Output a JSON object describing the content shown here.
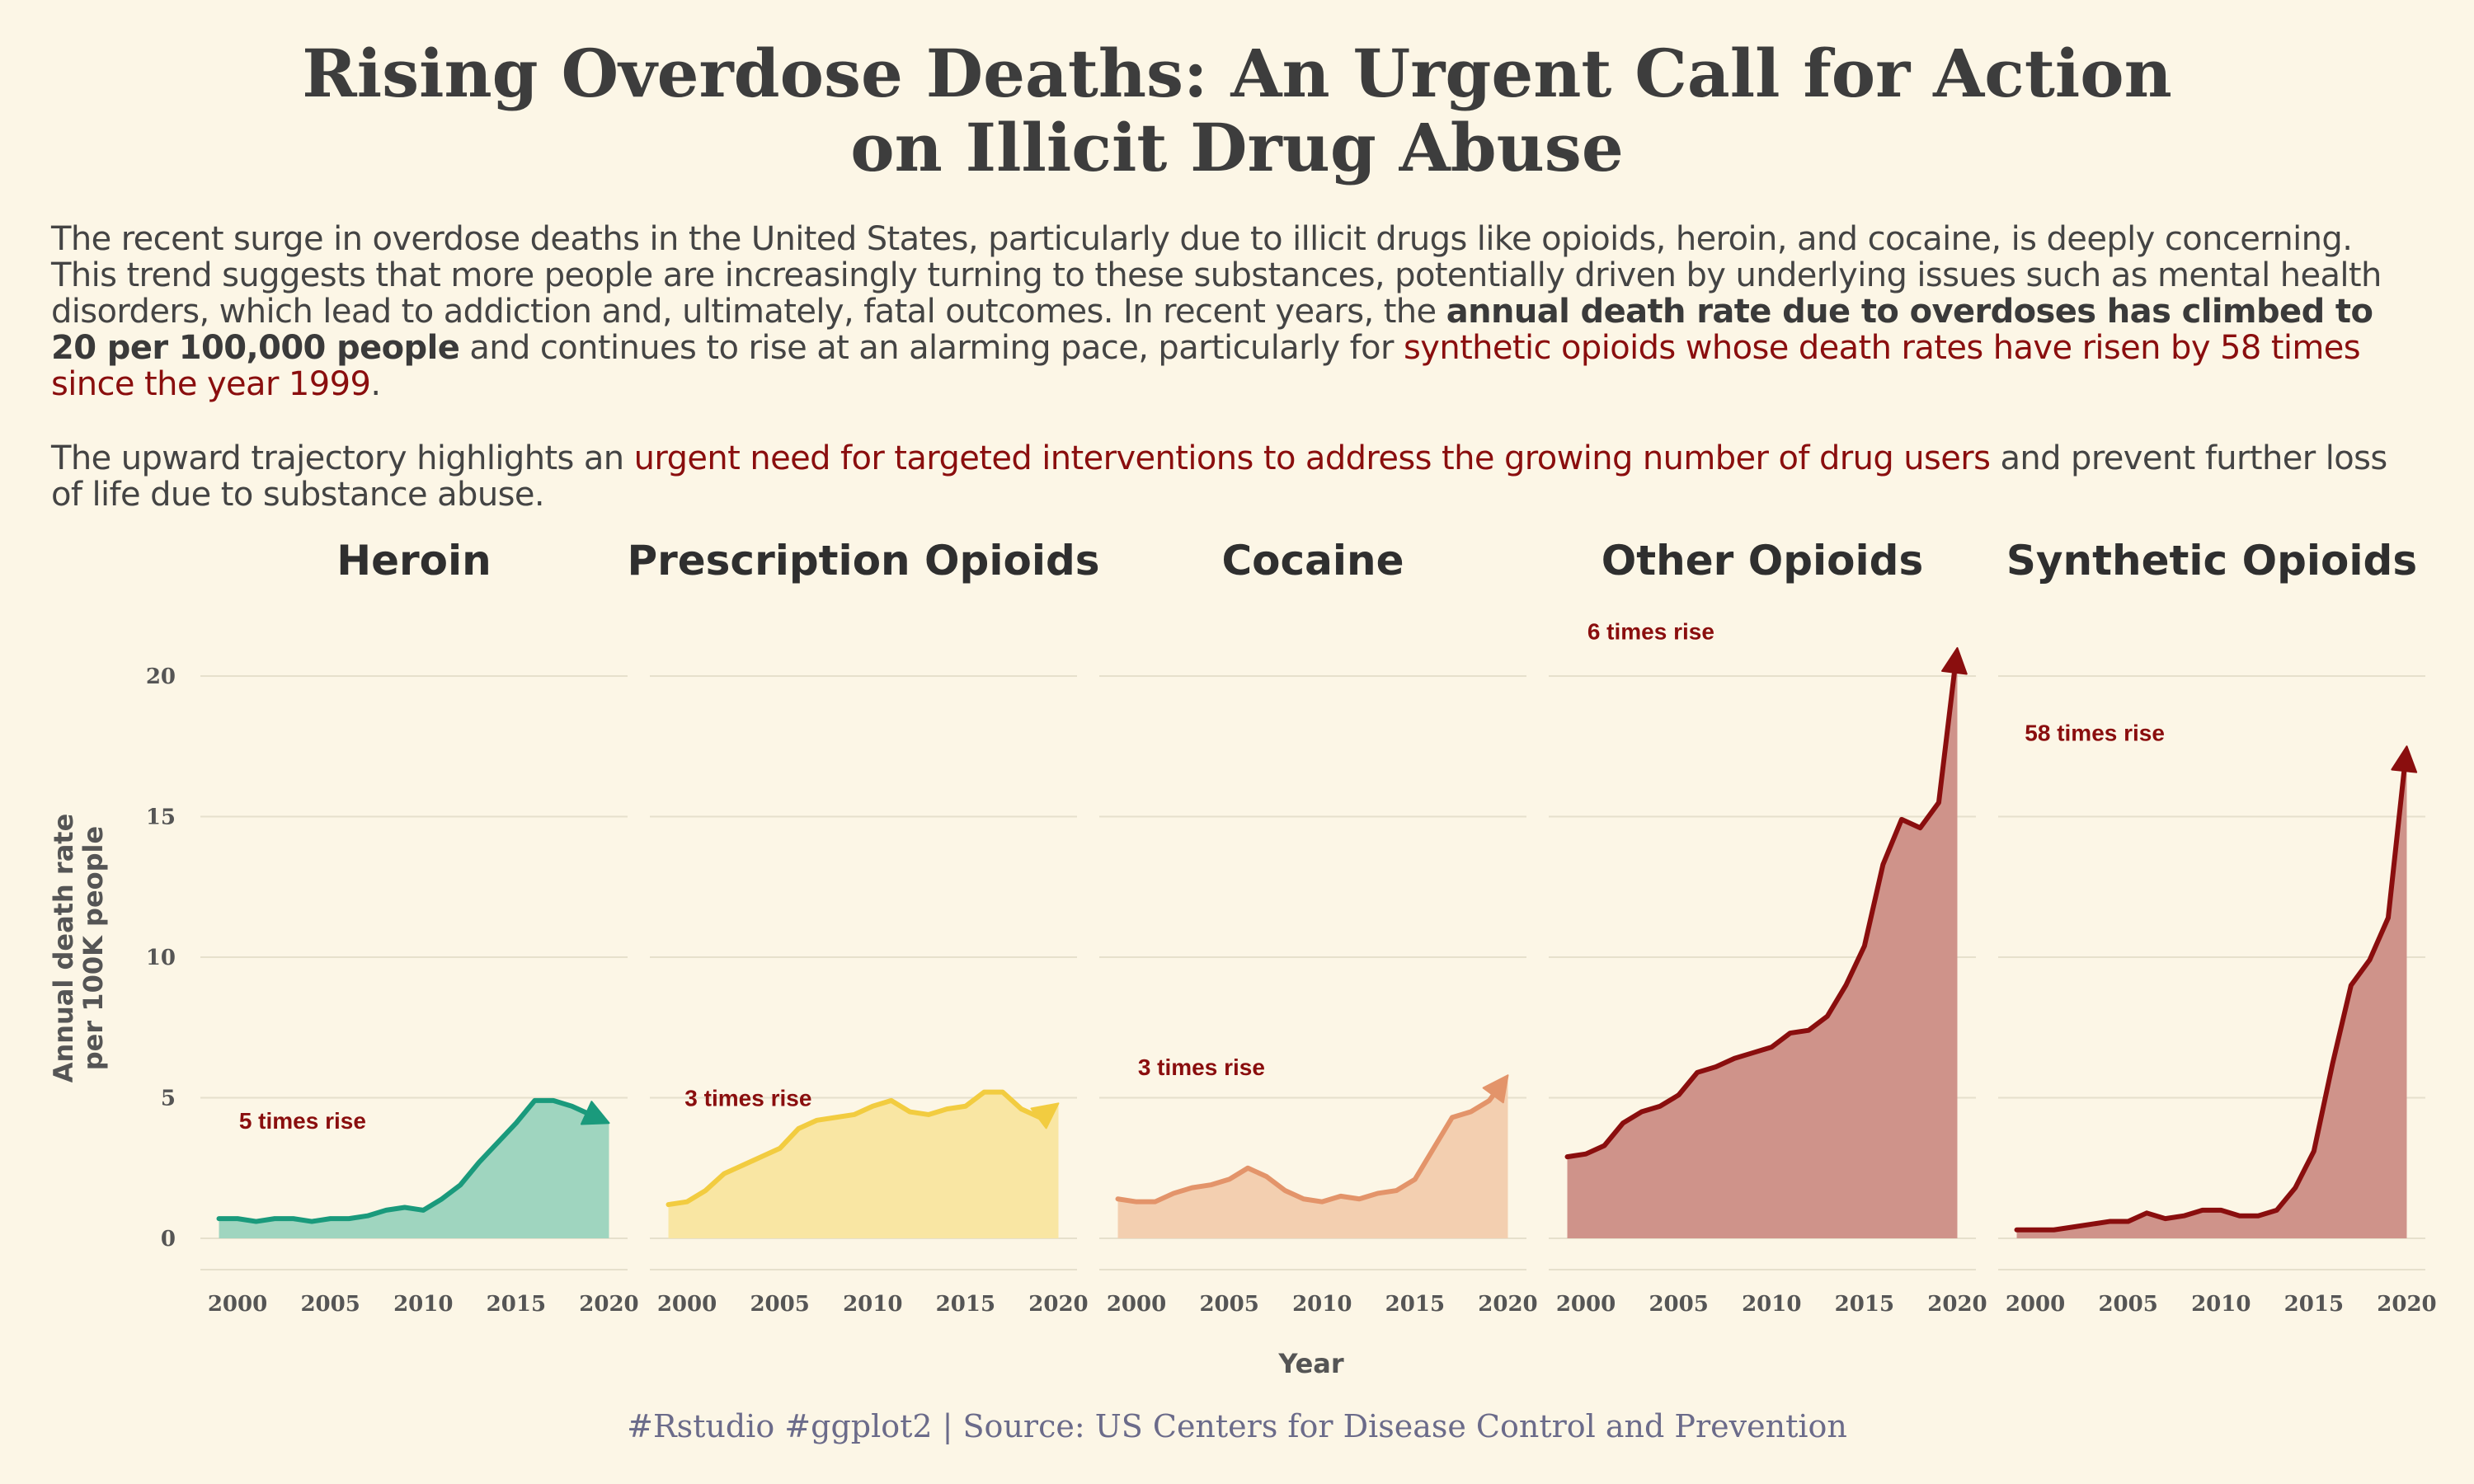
{
  "title": {
    "line1": "Rising Overdose Deaths: An Urgent Call for Action",
    "line2": "on Illicit Drug Abuse"
  },
  "intro": {
    "p1_a": "The recent surge in overdose deaths in the United States, particularly due to illicit drugs like opioids, heroin, and cocaine, is deeply concerning. This trend suggests that more people are increasingly turning to these substances, potentially driven by underlying issues such as mental health disorders, which lead to addiction and, ultimately, fatal outcomes. In recent years, the ",
    "p1_b": "annual death rate due to overdoses has climbed to 20 per 100,000 people",
    "p1_c": " and continues to rise at an alarming pace, particularly for ",
    "p1_d": "synthetic opioids whose death rates have risen by 58 times since the year 1999",
    "p1_e": ".",
    "p2_a": "The upward trajectory highlights an ",
    "p2_b": "urgent need for targeted interventions to address the growing number of drug users",
    "p2_c": " and prevent further loss of life due to substance abuse."
  },
  "caption": "#Rstudio #ggplot2 |  Source: US Centers for Disease Control and Prevention",
  "chart_data": {
    "type": "area",
    "xlabel": "Year",
    "ylabel_line1": "Annual death rate",
    "ylabel_line2": "per 100K people",
    "yticks": [
      0,
      5,
      10,
      15,
      20
    ],
    "xticks": [
      2000,
      2005,
      2010,
      2015,
      2020
    ],
    "x": [
      1999,
      2000,
      2001,
      2002,
      2003,
      2004,
      2005,
      2006,
      2007,
      2008,
      2009,
      2010,
      2011,
      2012,
      2013,
      2014,
      2015,
      2016,
      2017,
      2018,
      2019,
      2020
    ],
    "series": [
      {
        "name": "Heroin",
        "color": "#1a9a7c",
        "fill": "#9fd5bf",
        "annotation": "5 times rise",
        "annotation_x": 2003.5,
        "annotation_y": 3.9,
        "values": [
          0.7,
          0.7,
          0.6,
          0.7,
          0.7,
          0.6,
          0.7,
          0.7,
          0.8,
          1.0,
          1.1,
          1.0,
          1.4,
          1.9,
          2.7,
          3.4,
          4.1,
          4.9,
          4.9,
          4.7,
          4.4,
          4.1
        ]
      },
      {
        "name": "Prescription Opioids",
        "color": "#f2cc40",
        "fill": "#f9e6a3",
        "annotation": "3 times rise",
        "annotation_x": 2003.3,
        "annotation_y": 4.7,
        "values": [
          1.2,
          1.3,
          1.7,
          2.3,
          2.6,
          2.9,
          3.2,
          3.9,
          4.2,
          4.3,
          4.4,
          4.7,
          4.9,
          4.5,
          4.4,
          4.6,
          4.7,
          5.2,
          5.2,
          4.6,
          4.3,
          4.8
        ]
      },
      {
        "name": "Cocaine",
        "color": "#e3946a",
        "fill": "#f3cfb0",
        "annotation": "3 times rise",
        "annotation_x": 2003.5,
        "annotation_y": 5.8,
        "values": [
          1.4,
          1.3,
          1.3,
          1.6,
          1.8,
          1.9,
          2.1,
          2.5,
          2.2,
          1.7,
          1.4,
          1.3,
          1.5,
          1.4,
          1.6,
          1.7,
          2.1,
          3.2,
          4.3,
          4.5,
          4.9,
          5.8
        ]
      },
      {
        "name": "Other Opioids",
        "color": "#8a0e0e",
        "fill": "#cf938a",
        "annotation": "6 times rise",
        "annotation_x": 2003.5,
        "annotation_y": 21.3,
        "values": [
          2.9,
          3.0,
          3.3,
          4.1,
          4.5,
          4.7,
          5.1,
          5.9,
          6.1,
          6.4,
          6.6,
          6.8,
          7.3,
          7.4,
          7.9,
          9.0,
          10.4,
          13.3,
          14.9,
          14.6,
          15.5,
          21.0
        ]
      },
      {
        "name": "Synthetic Opioids",
        "color": "#8a0e0e",
        "fill": "#cf938a",
        "annotation": "58 times rise",
        "annotation_x": 2003.2,
        "annotation_y": 17.7,
        "values": [
          0.3,
          0.3,
          0.3,
          0.4,
          0.5,
          0.6,
          0.6,
          0.9,
          0.7,
          0.8,
          1.0,
          1.0,
          0.8,
          0.8,
          1.0,
          1.8,
          3.1,
          6.2,
          9.0,
          9.9,
          11.4,
          17.5
        ]
      }
    ]
  }
}
